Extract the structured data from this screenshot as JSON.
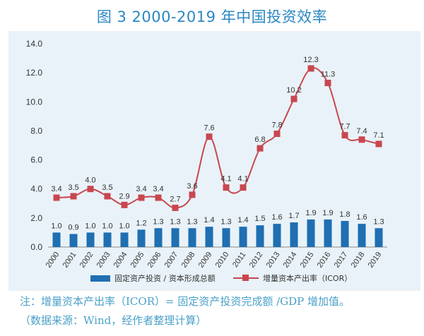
{
  "title": "图 3 2000-2019 年中国投资效率",
  "note1": "注：增量资本产出率（ICOR）= 固定资产投资完成额 /GDP 增加值。",
  "note2": "（数据来源：Wind，经作者整理计算）",
  "colors": {
    "bar": "#1f6fb2",
    "line": "#c8474f",
    "title": "#2b87c4",
    "panel": "#e9f2f8"
  },
  "chart_data": {
    "type": "bar+line",
    "title": "图 3 2000-2019 年中国投资效率",
    "categories": [
      "2000",
      "2001",
      "2002",
      "2003",
      "2004",
      "2005",
      "2006",
      "2007",
      "2008",
      "2009",
      "2010",
      "2011",
      "2012",
      "2013",
      "2014",
      "2015",
      "2016",
      "2017",
      "2018",
      "2019"
    ],
    "y_ticks": [
      "0.0",
      "2.0",
      "4.0",
      "6.0",
      "8.0",
      "10.0",
      "12.0",
      "14.0"
    ],
    "ylim": [
      0,
      14
    ],
    "series": [
      {
        "name": "固定资产投资 / 资本形成总额",
        "type": "bar",
        "values": [
          1.0,
          0.9,
          1.0,
          1.0,
          1.0,
          1.2,
          1.3,
          1.3,
          1.3,
          1.4,
          1.3,
          1.4,
          1.5,
          1.6,
          1.7,
          1.9,
          1.9,
          1.8,
          1.6,
          1.3
        ],
        "labels": [
          "1.0",
          "0.9",
          "1.0",
          "1.0",
          "1.0",
          "1.2",
          "1.3",
          "1.3",
          "1.3",
          "1.4",
          "1.3",
          "1.4",
          "1.5",
          "1.6",
          "1.7",
          "1.9",
          "1.9",
          "1.8",
          "1.6",
          "1.3"
        ]
      },
      {
        "name": "增量资本产出率（ICOR）",
        "type": "line",
        "values": [
          3.4,
          3.5,
          4.0,
          3.5,
          2.9,
          3.4,
          3.4,
          2.7,
          3.6,
          7.6,
          4.1,
          4.1,
          6.8,
          7.8,
          10.2,
          12.3,
          11.3,
          7.7,
          7.4,
          7.1
        ],
        "labels": [
          "3.4",
          "3.5",
          "4.0",
          "3.5",
          "2.9",
          "3.4",
          "3.4",
          "2.7",
          "3.6",
          "7.6",
          "4.1",
          "4.1",
          "6.8",
          "7.8",
          "10.2",
          "12.3",
          "11.3",
          "7.7",
          "7.4",
          "7.1"
        ]
      }
    ],
    "legend": "bottom"
  }
}
